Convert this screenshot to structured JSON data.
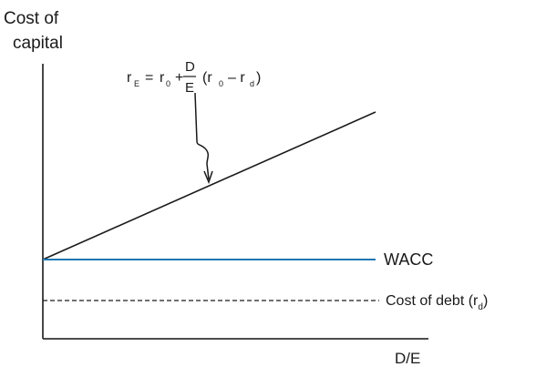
{
  "y_axis_label_lines": [
    "Cost of",
    "capital"
  ],
  "x_axis_label": "D/E",
  "formula": {
    "lhs": "r",
    "lhs_sub": "E",
    "eq": "=",
    "r0": "r",
    "r0_sub": "0",
    "plus": "+",
    "frac_num": "D",
    "frac_den": "E",
    "paren_open": "(r",
    "paren_sub_0": "0",
    "minus": "– r",
    "paren_sub_d": "d",
    "paren_close": ")"
  },
  "lines": {
    "wacc_label": "WACC",
    "debt_label_text": "Cost of debt (r",
    "debt_label_sub": "d",
    "debt_label_close": ")"
  },
  "colors": {
    "axis": "#333333",
    "cost_of_equity_line": "#1a1a1a",
    "wacc_line": "#1f77b4",
    "debt_line": "#1a1a1a",
    "text": "#1a1a1a"
  }
}
